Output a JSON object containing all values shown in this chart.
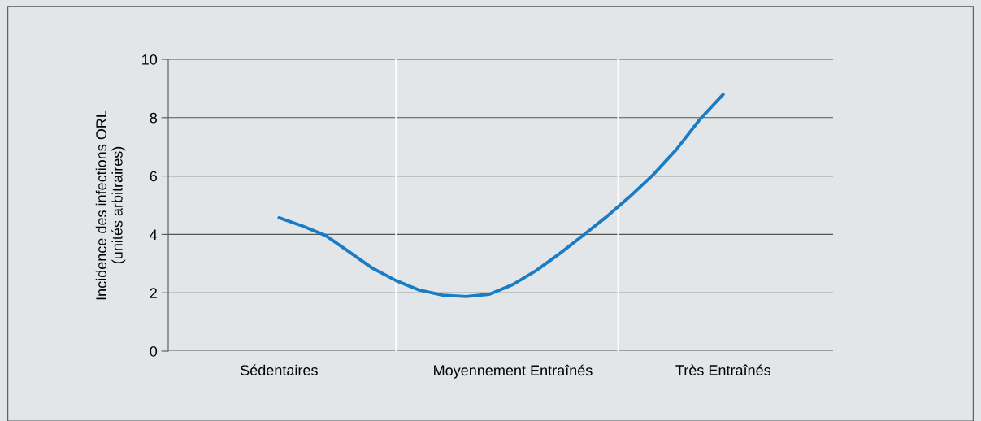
{
  "chart_data": {
    "type": "line",
    "ylabel": "Incidence des infections ORL\n(unités arbitraires)",
    "categories": [
      "Sédentaires",
      null,
      null,
      null,
      null,
      null,
      null,
      null,
      null,
      null,
      "Moyennement Entraînés",
      null,
      null,
      null,
      null,
      null,
      null,
      null,
      null,
      "Très Entraînés"
    ],
    "series": [
      {
        "color": "#1a7dc4",
        "values": [
          4.57,
          4.29,
          3.96,
          3.4,
          2.84,
          2.42,
          2.09,
          1.92,
          1.87,
          1.95,
          2.28,
          2.76,
          3.34,
          3.96,
          4.6,
          5.29,
          6.04,
          6.91,
          7.94,
          8.8
        ]
      }
    ],
    "ylim": [
      0,
      10
    ],
    "yticks": [
      0,
      2,
      4,
      6,
      8,
      10
    ],
    "grid": "y",
    "marker": "none",
    "line_style": "solid",
    "legend": false
  }
}
